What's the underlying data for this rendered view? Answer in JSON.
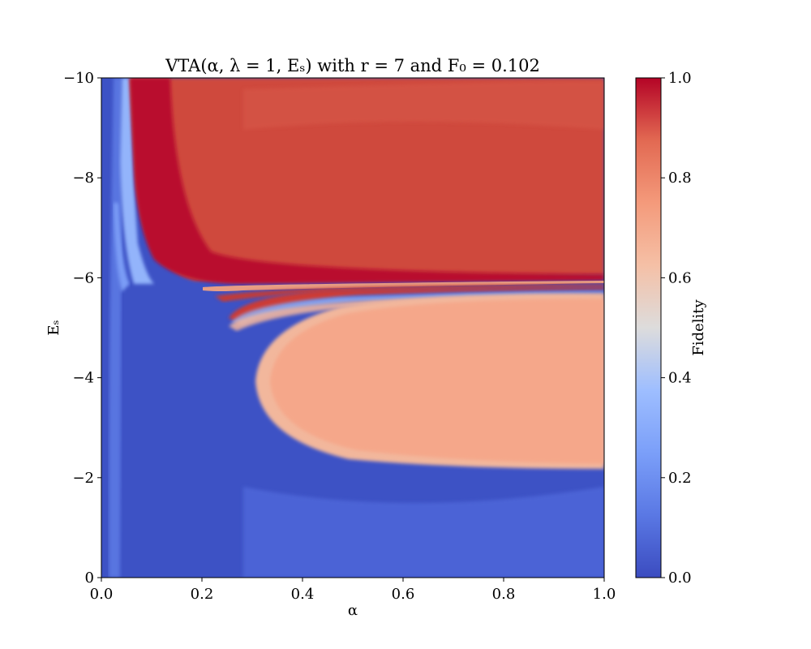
{
  "chart_data": {
    "type": "heatmap",
    "title": "VTA(α, λ = 1, Eₛ) with r = 7 and F₀ = 0.102",
    "xlabel": "α",
    "ylabel": "Eₛ",
    "xlim": [
      0.0,
      1.0
    ],
    "ylim": [
      0,
      -10
    ],
    "x_ticks": [
      "0.0",
      "0.2",
      "0.4",
      "0.6",
      "0.8",
      "1.0"
    ],
    "x_tick_values": [
      0.0,
      0.2,
      0.4,
      0.6,
      0.8,
      1.0
    ],
    "y_ticks": [
      "0",
      "−2",
      "−4",
      "−6",
      "−8",
      "−10"
    ],
    "y_tick_values": [
      0,
      -2,
      -4,
      -6,
      -8,
      -10
    ],
    "colorbar": {
      "label": "Fidelity",
      "range": [
        0.0,
        1.0
      ],
      "ticks": [
        "0.0",
        "0.2",
        "0.4",
        "0.6",
        "0.8",
        "1.0"
      ],
      "tick_values": [
        0.0,
        0.2,
        0.4,
        0.6,
        0.8,
        1.0
      ],
      "colormap": "coolwarm"
    },
    "regions": [
      {
        "description_value": "high fidelity plateau",
        "alpha_range": [
          0.07,
          1.0
        ],
        "Es_range": [
          -10,
          -6.0
        ],
        "fidelity": 0.92
      },
      {
        "description_value": "ellipse plateau",
        "alpha_range": [
          0.33,
          1.0
        ],
        "Es_range": [
          -5.8,
          -2.2
        ],
        "fidelity": 0.7
      },
      {
        "description_value": "low fidelity background",
        "fidelity": 0.05
      }
    ]
  }
}
